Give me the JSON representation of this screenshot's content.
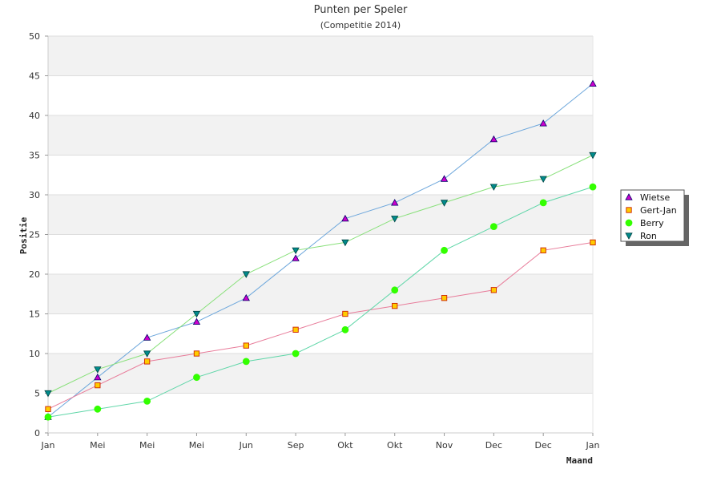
{
  "chart_data": {
    "type": "line",
    "title": "Punten per Speler",
    "subtitle": "(Competitie 2014)",
    "xlabel": "Maand",
    "ylabel": "Positie",
    "categories": [
      "Jan",
      "Mei",
      "Mei",
      "Mei",
      "Jun",
      "Sep",
      "Okt",
      "Okt",
      "Nov",
      "Dec",
      "Dec",
      "Jan"
    ],
    "ylim": [
      0,
      50
    ],
    "yticks": [
      0,
      5,
      10,
      15,
      20,
      25,
      30,
      35,
      40,
      45,
      50
    ],
    "grid": true,
    "legend_position": "right",
    "series": [
      {
        "name": "Wietse",
        "values": [
          2,
          7,
          12,
          14,
          17,
          22,
          27,
          29,
          32,
          37,
          39,
          44
        ],
        "line_color": "#6fa8dc",
        "marker": "triangle-up",
        "marker_fill": "#cc00cc",
        "marker_stroke": "#000066"
      },
      {
        "name": "Gert-Jan",
        "values": [
          3,
          6,
          9,
          10,
          11,
          13,
          15,
          16,
          17,
          18,
          23,
          24
        ],
        "line_color": "#e87c9a",
        "marker": "square",
        "marker_fill": "#ffcc00",
        "marker_stroke": "#cc2200"
      },
      {
        "name": "Berry",
        "values": [
          2,
          3,
          4,
          7,
          9,
          10,
          13,
          18,
          23,
          26,
          29,
          31
        ],
        "line_color": "#5fd6a8",
        "marker": "circle",
        "marker_fill": "#33ff00",
        "marker_stroke": "#33ff00"
      },
      {
        "name": "Ron",
        "values": [
          5,
          8,
          10,
          15,
          20,
          23,
          24,
          27,
          29,
          31,
          32,
          35
        ],
        "line_color": "#88e07a",
        "marker": "triangle-down",
        "marker_fill": "#008b8b",
        "marker_stroke": "#004444"
      }
    ]
  }
}
